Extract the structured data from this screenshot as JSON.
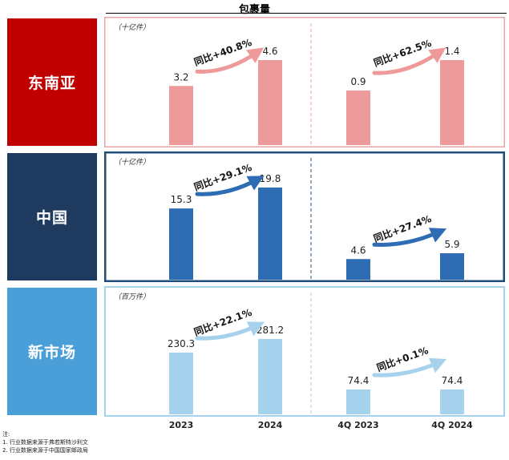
{
  "header": {
    "title": "包裹量"
  },
  "colors": {
    "sea": "#c00000",
    "sea_bar": "#ef9a9a",
    "sea_frame": "#e8a5a5",
    "cn": "#1f3a5f",
    "cn_bar": "#2e6db4",
    "cn_frame": "#1f4e79",
    "new": "#4a9fd8",
    "new_bar": "#a6d2ee",
    "new_frame": "#a6d2ee"
  },
  "chart_data": [
    {
      "type": "bar",
      "region": "东南亚",
      "unit": "（十亿件）",
      "categories": [
        "2023",
        "2024",
        "4Q 2023",
        "4Q 2024"
      ],
      "values": [
        3.2,
        4.6,
        0.9,
        1.4
      ],
      "value_labels": [
        "3.2",
        "4.6",
        "0.9",
        "1.4"
      ],
      "growth_labels": [
        "同比+40.8%",
        "同比+62.5%"
      ]
    },
    {
      "type": "bar",
      "region": "中国",
      "unit": "（十亿件）",
      "categories": [
        "2023",
        "2024",
        "4Q 2023",
        "4Q 2024"
      ],
      "values": [
        15.3,
        19.8,
        4.6,
        5.9
      ],
      "value_labels": [
        "15.3",
        "19.8",
        "4.6",
        "5.9"
      ],
      "growth_labels": [
        "同比+29.1%",
        "同比+27.4%"
      ]
    },
    {
      "type": "bar",
      "region": "新市场",
      "unit": "（百万件）",
      "categories": [
        "2023",
        "2024",
        "4Q 2023",
        "4Q 2024"
      ],
      "values": [
        230.3,
        281.2,
        74.4,
        74.4
      ],
      "value_labels": [
        "230.3",
        "281.2",
        "74.4",
        "74.4"
      ],
      "growth_labels": [
        "同比+22.1%",
        "同比+0.1%"
      ]
    }
  ],
  "x_axis": {
    "labels": [
      "2023",
      "2024",
      "4Q 2023",
      "4Q 2024"
    ]
  },
  "notes": {
    "heading": "注:",
    "line1": "1. 行业数据来源于弗若斯特沙利文",
    "line2": "2. 行业数据来源于中国国家邮政局"
  }
}
